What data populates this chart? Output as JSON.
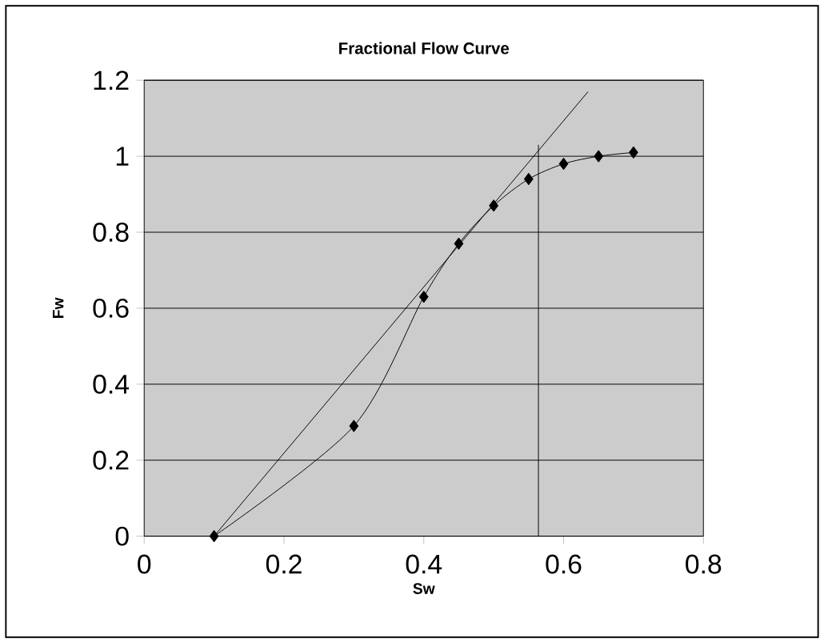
{
  "chart_data": {
    "type": "line",
    "title": "Fractional Flow Curve",
    "xlabel": "Sw",
    "ylabel": "Fw",
    "xlim": [
      0,
      0.8
    ],
    "ylim": [
      0,
      1.2
    ],
    "xticks": [
      0,
      0.2,
      0.4,
      0.6,
      0.8
    ],
    "yticks": [
      0,
      0.2,
      0.4,
      0.6,
      0.8,
      1,
      1.2
    ],
    "grid": "y",
    "marker": "diamond",
    "series": [
      {
        "color": "#000000",
        "x": [
          0.1,
          0.3,
          0.4,
          0.45,
          0.5,
          0.55,
          0.6,
          0.65,
          0.7
        ],
        "values": [
          0,
          0.29,
          0.63,
          0.77,
          0.87,
          0.94,
          0.98,
          1.0,
          1.01
        ]
      },
      {
        "color": "#000000",
        "marker": "none",
        "x": [
          0.1,
          0.635
        ],
        "values": [
          0,
          1.17
        ]
      },
      {
        "color": "#000000",
        "marker": "none",
        "x": [
          0.564,
          0.564
        ],
        "values": [
          0,
          1.03
        ]
      }
    ]
  }
}
